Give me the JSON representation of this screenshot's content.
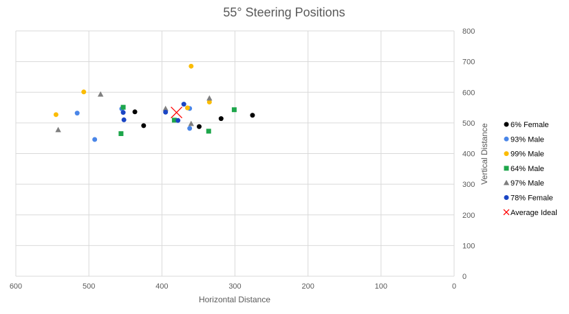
{
  "chart_data": {
    "type": "scatter",
    "title": "55° Steering Positions",
    "xlabel": "Horizontal Distance",
    "ylabel": "Vertical Distance",
    "xlim": [
      600,
      0
    ],
    "ylim": [
      0,
      800
    ],
    "x_reversed": true,
    "y_axis_side": "right",
    "x_ticks": [
      "600",
      "500",
      "400",
      "300",
      "200",
      "100",
      "0"
    ],
    "y_ticks": [
      "0",
      "100",
      "200",
      "300",
      "400",
      "500",
      "600",
      "700",
      "800"
    ],
    "grid": true,
    "legend_position": "right",
    "series": [
      {
        "name": "6% Female",
        "color": "#000000",
        "marker": "circle",
        "points": [
          [
            437,
            536
          ],
          [
            425,
            491
          ],
          [
            349,
            488
          ],
          [
            319,
            514
          ],
          [
            276,
            525
          ]
        ]
      },
      {
        "name": "93% Male",
        "color": "#4a86e8",
        "marker": "circle",
        "points": [
          [
            516,
            532
          ],
          [
            492,
            446
          ],
          [
            455,
            546
          ],
          [
            362,
            482
          ],
          [
            362,
            547
          ]
        ]
      },
      {
        "name": "99% Male",
        "color": "#fbbc04",
        "marker": "circle",
        "points": [
          [
            545,
            527
          ],
          [
            507,
            601
          ],
          [
            360,
            685
          ],
          [
            335,
            568
          ],
          [
            365,
            549
          ]
        ]
      },
      {
        "name": "64% Male",
        "color": "#1ea64b",
        "marker": "square",
        "points": [
          [
            453,
            551
          ],
          [
            456,
            465
          ],
          [
            383,
            509
          ],
          [
            336,
            473
          ],
          [
            301,
            543
          ]
        ]
      },
      {
        "name": "97% Male",
        "color": "#7f7f7f",
        "marker": "triangle",
        "points": [
          [
            542,
            477
          ],
          [
            484,
            593
          ],
          [
            395,
            546
          ],
          [
            360,
            497
          ],
          [
            335,
            580
          ]
        ]
      },
      {
        "name": "78% Female",
        "color": "#1a45c4",
        "marker": "circle",
        "points": [
          [
            453,
            534
          ],
          [
            452,
            510
          ],
          [
            395,
            535
          ],
          [
            370,
            561
          ],
          [
            378,
            508
          ]
        ]
      },
      {
        "name": "Average Ideal",
        "color": "#ff0000",
        "marker": "x",
        "points": [
          [
            380,
            534
          ]
        ]
      }
    ]
  }
}
